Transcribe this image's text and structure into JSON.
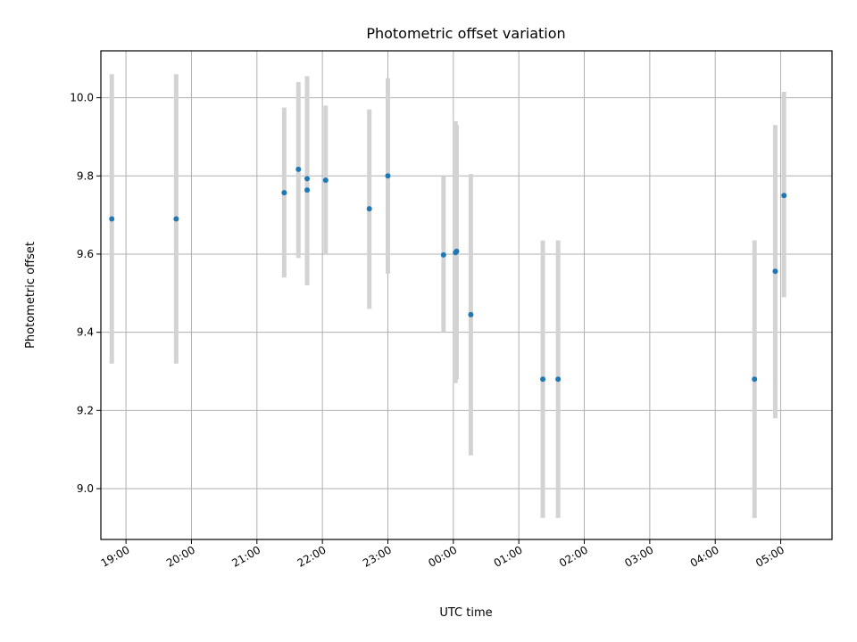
{
  "chart_data": {
    "type": "scatter",
    "title": "Photometric offset variation",
    "xlabel": "UTC time",
    "ylabel": "Photometric offset",
    "grid": true,
    "x_is_time": true,
    "xlim": [
      "18:37",
      "05:47"
    ],
    "ylim": [
      8.87,
      10.12
    ],
    "x_tick_labels": [
      "19:00",
      "20:00",
      "21:00",
      "22:00",
      "23:00",
      "00:00",
      "01:00",
      "02:00",
      "03:00",
      "04:00",
      "05:00"
    ],
    "y_tick_labels": [
      "9.0",
      "9.2",
      "9.4",
      "9.6",
      "9.8",
      "10.0"
    ],
    "y_ticks": [
      9.0,
      9.2,
      9.4,
      9.6,
      9.8,
      10.0
    ],
    "colors": {
      "marker": "#1f77b4",
      "errorbar": "#d3d3d3",
      "grid": "#b0b0b0"
    },
    "points": [
      {
        "x": "18:47",
        "y": 9.69,
        "err_low": 9.32,
        "err_high": 10.06
      },
      {
        "x": "19:46",
        "y": 9.69,
        "err_low": 9.32,
        "err_high": 10.06
      },
      {
        "x": "21:25",
        "y": 9.757,
        "err_low": 9.54,
        "err_high": 9.975
      },
      {
        "x": "21:38",
        "y": 9.817,
        "err_low": 9.59,
        "err_high": 10.04
      },
      {
        "x": "21:46",
        "y": 9.793,
        "err_low": 9.53,
        "err_high": 10.055
      },
      {
        "x": "21:46",
        "y": 9.764,
        "err_low": 9.52,
        "err_high": 10.0
      },
      {
        "x": "22:03",
        "y": 9.789,
        "err_low": 9.6,
        "err_high": 9.98
      },
      {
        "x": "22:43",
        "y": 9.716,
        "err_low": 9.46,
        "err_high": 9.97
      },
      {
        "x": "23:00",
        "y": 9.8,
        "err_low": 9.55,
        "err_high": 10.05
      },
      {
        "x": "23:51",
        "y": 9.598,
        "err_low": 9.4,
        "err_high": 9.8
      },
      {
        "x": "00:02",
        "y": 9.604,
        "err_low": 9.27,
        "err_high": 9.94
      },
      {
        "x": "00:03",
        "y": 9.607,
        "err_low": 9.28,
        "err_high": 9.93
      },
      {
        "x": "00:16",
        "y": 9.445,
        "err_low": 9.085,
        "err_high": 9.805
      },
      {
        "x": "01:22",
        "y": 9.28,
        "err_low": 8.925,
        "err_high": 9.635
      },
      {
        "x": "01:36",
        "y": 9.28,
        "err_low": 8.925,
        "err_high": 9.635
      },
      {
        "x": "04:36",
        "y": 9.28,
        "err_low": 8.925,
        "err_high": 9.635
      },
      {
        "x": "04:55",
        "y": 9.556,
        "err_low": 9.18,
        "err_high": 9.93
      },
      {
        "x": "05:03",
        "y": 9.75,
        "err_low": 9.49,
        "err_high": 10.015
      }
    ]
  }
}
